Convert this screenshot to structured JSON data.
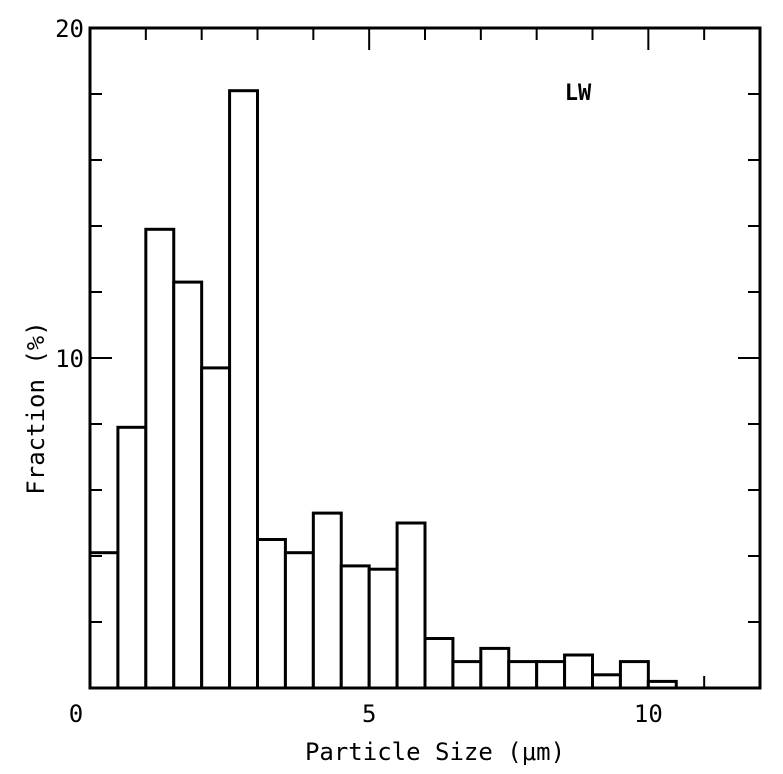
{
  "chart_data": {
    "type": "bar",
    "title": "",
    "annotation": "LW",
    "xlabel": "Particle Size  (μm)",
    "ylabel": "Fraction  (%)",
    "xlim": [
      0,
      12
    ],
    "ylim": [
      0,
      20
    ],
    "x_ticks": [
      0,
      5,
      10
    ],
    "y_ticks": [
      10,
      20
    ],
    "x_origin_label": "0",
    "bin_width": 0.5,
    "bins": [
      {
        "x": 0.0,
        "value": 4.1
      },
      {
        "x": 0.5,
        "value": 7.9
      },
      {
        "x": 1.0,
        "value": 13.9
      },
      {
        "x": 1.5,
        "value": 12.3
      },
      {
        "x": 2.0,
        "value": 9.7
      },
      {
        "x": 2.5,
        "value": 18.1
      },
      {
        "x": 3.0,
        "value": 4.5
      },
      {
        "x": 3.5,
        "value": 4.1
      },
      {
        "x": 4.0,
        "value": 5.3
      },
      {
        "x": 4.5,
        "value": 3.7
      },
      {
        "x": 5.0,
        "value": 3.6
      },
      {
        "x": 5.5,
        "value": 5.0
      },
      {
        "x": 6.0,
        "value": 1.5
      },
      {
        "x": 6.5,
        "value": 0.8
      },
      {
        "x": 7.0,
        "value": 1.2
      },
      {
        "x": 7.5,
        "value": 0.8
      },
      {
        "x": 8.0,
        "value": 0.8
      },
      {
        "x": 8.5,
        "value": 1.0
      },
      {
        "x": 9.0,
        "value": 0.4
      },
      {
        "x": 9.5,
        "value": 0.8
      },
      {
        "x": 10.0,
        "value": 0.2
      }
    ],
    "grid": false,
    "bar_fill": "#ffffff",
    "bar_stroke": "#000000"
  }
}
